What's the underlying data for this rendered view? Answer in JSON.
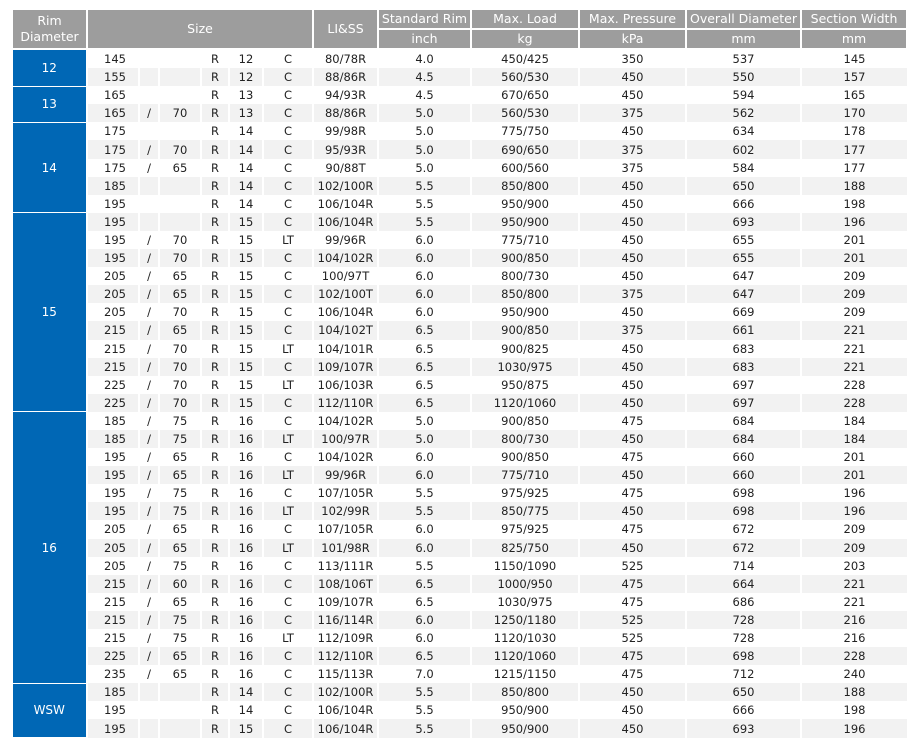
{
  "headers": {
    "rim_diameter": "Rim Diameter",
    "size": "Size",
    "li_ss": "LI&SS",
    "standard_rim": "Standard Rim",
    "standard_rim_unit": "inch",
    "max_load": "Max. Load",
    "max_load_unit": "kg",
    "max_pressure": "Max. Pressure",
    "max_pressure_unit": "kPa",
    "overall_diameter": "Overall Diameter",
    "overall_diameter_unit": "mm",
    "section_width": "Section Width",
    "section_width_unit": "mm"
  },
  "colors": {
    "header_bg": "#9d9d9d",
    "rim_bg": "#0067b5",
    "alt_row": "#f2f2f2"
  },
  "groups": [
    {
      "rim": "12",
      "rows": [
        [
          "145",
          "",
          "",
          "R",
          "12",
          "C",
          "80/78R",
          "4.0",
          "450/425",
          "350",
          "537",
          "145"
        ],
        [
          "155",
          "",
          "",
          "R",
          "12",
          "C",
          "88/86R",
          "4.5",
          "560/530",
          "450",
          "550",
          "157"
        ]
      ]
    },
    {
      "rim": "13",
      "rows": [
        [
          "165",
          "",
          "",
          "R",
          "13",
          "C",
          "94/93R",
          "4.5",
          "670/650",
          "450",
          "594",
          "165"
        ],
        [
          "165",
          "/",
          "70",
          "R",
          "13",
          "C",
          "88/86R",
          "5.0",
          "560/530",
          "375",
          "562",
          "170"
        ]
      ]
    },
    {
      "rim": "14",
      "rows": [
        [
          "175",
          "",
          "",
          "R",
          "14",
          "C",
          "99/98R",
          "5.0",
          "775/750",
          "450",
          "634",
          "178"
        ],
        [
          "175",
          "/",
          "70",
          "R",
          "14",
          "C",
          "95/93R",
          "5.0",
          "690/650",
          "375",
          "602",
          "177"
        ],
        [
          "175",
          "/",
          "65",
          "R",
          "14",
          "C",
          "90/88T",
          "5.0",
          "600/560",
          "375",
          "584",
          "177"
        ],
        [
          "185",
          "",
          "",
          "R",
          "14",
          "C",
          "102/100R",
          "5.5",
          "850/800",
          "450",
          "650",
          "188"
        ],
        [
          "195",
          "",
          "",
          "R",
          "14",
          "C",
          "106/104R",
          "5.5",
          "950/900",
          "450",
          "666",
          "198"
        ]
      ]
    },
    {
      "rim": "15",
      "rows": [
        [
          "195",
          "",
          "",
          "R",
          "15",
          "C",
          "106/104R",
          "5.5",
          "950/900",
          "450",
          "693",
          "196"
        ],
        [
          "195",
          "/",
          "70",
          "R",
          "15",
          "LT",
          "99/96R",
          "6.0",
          "775/710",
          "450",
          "655",
          "201"
        ],
        [
          "195",
          "/",
          "70",
          "R",
          "15",
          "C",
          "104/102R",
          "6.0",
          "900/850",
          "450",
          "655",
          "201"
        ],
        [
          "205",
          "/",
          "65",
          "R",
          "15",
          "C",
          "100/97T",
          "6.0",
          "800/730",
          "450",
          "647",
          "209"
        ],
        [
          "205",
          "/",
          "65",
          "R",
          "15",
          "C",
          "102/100T",
          "6.0",
          "850/800",
          "375",
          "647",
          "209"
        ],
        [
          "205",
          "/",
          "70",
          "R",
          "15",
          "C",
          "106/104R",
          "6.0",
          "950/900",
          "450",
          "669",
          "209"
        ],
        [
          "215",
          "/",
          "65",
          "R",
          "15",
          "C",
          "104/102T",
          "6.5",
          "900/850",
          "375",
          "661",
          "221"
        ],
        [
          "215",
          "/",
          "70",
          "R",
          "15",
          "LT",
          "104/101R",
          "6.5",
          "900/825",
          "450",
          "683",
          "221"
        ],
        [
          "215",
          "/",
          "70",
          "R",
          "15",
          "C",
          "109/107R",
          "6.5",
          "1030/975",
          "450",
          "683",
          "221"
        ],
        [
          "225",
          "/",
          "70",
          "R",
          "15",
          "LT",
          "106/103R",
          "6.5",
          "950/875",
          "450",
          "697",
          "228"
        ],
        [
          "225",
          "/",
          "70",
          "R",
          "15",
          "C",
          "112/110R",
          "6.5",
          "1120/1060",
          "450",
          "697",
          "228"
        ]
      ]
    },
    {
      "rim": "16",
      "rows": [
        [
          "185",
          "/",
          "75",
          "R",
          "16",
          "C",
          "104/102R",
          "5.0",
          "900/850",
          "475",
          "684",
          "184"
        ],
        [
          "185",
          "/",
          "75",
          "R",
          "16",
          "LT",
          "100/97R",
          "5.0",
          "800/730",
          "450",
          "684",
          "184"
        ],
        [
          "195",
          "/",
          "65",
          "R",
          "16",
          "C",
          "104/102R",
          "6.0",
          "900/850",
          "475",
          "660",
          "201"
        ],
        [
          "195",
          "/",
          "65",
          "R",
          "16",
          "LT",
          "99/96R",
          "6.0",
          "775/710",
          "450",
          "660",
          "201"
        ],
        [
          "195",
          "/",
          "75",
          "R",
          "16",
          "C",
          "107/105R",
          "5.5",
          "975/925",
          "475",
          "698",
          "196"
        ],
        [
          "195",
          "/",
          "75",
          "R",
          "16",
          "LT",
          "102/99R",
          "5.5",
          "850/775",
          "450",
          "698",
          "196"
        ],
        [
          "205",
          "/",
          "65",
          "R",
          "16",
          "C",
          "107/105R",
          "6.0",
          "975/925",
          "475",
          "672",
          "209"
        ],
        [
          "205",
          "/",
          "65",
          "R",
          "16",
          "LT",
          "101/98R",
          "6.0",
          "825/750",
          "450",
          "672",
          "209"
        ],
        [
          "205",
          "/",
          "75",
          "R",
          "16",
          "C",
          "113/111R",
          "5.5",
          "1150/1090",
          "525",
          "714",
          "203"
        ],
        [
          "215",
          "/",
          "60",
          "R",
          "16",
          "C",
          "108/106T",
          "6.5",
          "1000/950",
          "475",
          "664",
          "221"
        ],
        [
          "215",
          "/",
          "65",
          "R",
          "16",
          "C",
          "109/107R",
          "6.5",
          "1030/975",
          "475",
          "686",
          "221"
        ],
        [
          "215",
          "/",
          "75",
          "R",
          "16",
          "C",
          "116/114R",
          "6.0",
          "1250/1180",
          "525",
          "728",
          "216"
        ],
        [
          "215",
          "/",
          "75",
          "R",
          "16",
          "LT",
          "112/109R",
          "6.0",
          "1120/1030",
          "525",
          "728",
          "216"
        ],
        [
          "225",
          "/",
          "65",
          "R",
          "16",
          "C",
          "112/110R",
          "6.5",
          "1120/1060",
          "475",
          "698",
          "228"
        ],
        [
          "235",
          "/",
          "65",
          "R",
          "16",
          "C",
          "115/113R",
          "7.0",
          "1215/1150",
          "475",
          "712",
          "240"
        ]
      ]
    },
    {
      "rim": "WSW",
      "rows": [
        [
          "185",
          "",
          "",
          "R",
          "14",
          "C",
          "102/100R",
          "5.5",
          "850/800",
          "450",
          "650",
          "188"
        ],
        [
          "195",
          "",
          "",
          "R",
          "14",
          "C",
          "106/104R",
          "5.5",
          "950/900",
          "450",
          "666",
          "198"
        ],
        [
          "195",
          "",
          "",
          "R",
          "15",
          "C",
          "106/104R",
          "5.5",
          "950/900",
          "450",
          "693",
          "196"
        ]
      ]
    }
  ]
}
